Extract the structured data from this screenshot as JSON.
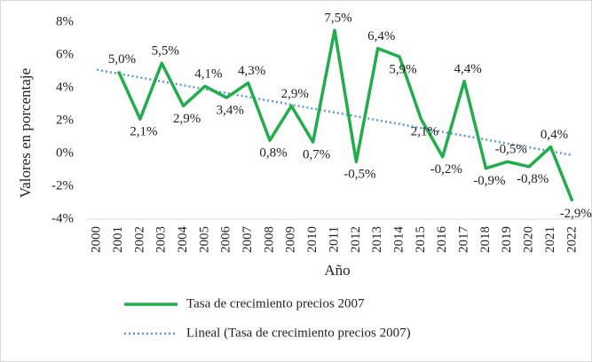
{
  "chart_data": {
    "type": "line",
    "categories": [
      "2000",
      "2001",
      "2002",
      "2003",
      "2004",
      "2005",
      "2006",
      "2007",
      "2008",
      "2009",
      "2010",
      "2011",
      "2012",
      "2013",
      "2014",
      "2015",
      "2016",
      "2017",
      "2018",
      "2019",
      "2020",
      "2021",
      "2022"
    ],
    "series": [
      {
        "name": "Tasa de crecimiento precios  2007",
        "color": "#21ad4b",
        "values": [
          null,
          5.0,
          2.1,
          5.5,
          2.9,
          4.1,
          3.4,
          4.3,
          0.8,
          2.9,
          0.7,
          7.5,
          -0.5,
          6.4,
          5.9,
          2.1,
          -0.2,
          4.4,
          -0.9,
          -0.5,
          -0.8,
          0.4,
          -2.9
        ],
        "value_labels": [
          null,
          "5,0%",
          "2,1%",
          "5,5%",
          "2,9%",
          "4,1%",
          "3,4%",
          "4,3%",
          "0,8%",
          "2,9%",
          "0,7%",
          "7,5%",
          "-0,5%",
          "6,4%",
          "5,9%",
          "2,1%",
          "-0,2%",
          "4,4%",
          "-0,9%",
          "-0,5%",
          "-0,8%",
          "0,4%",
          "-2,9%"
        ]
      }
    ],
    "trendline": {
      "name": "Lineal (Tasa de crecimiento precios  2007)",
      "color": "#5b9bd5",
      "values": [
        5.1,
        -0.1
      ]
    },
    "xlabel": "Año",
    "ylabel": "Valores en porcentaje",
    "ylim": [
      -4,
      8
    ],
    "yticks": [
      {
        "value": -4,
        "label": "-4%"
      },
      {
        "value": -2,
        "label": "-2%"
      },
      {
        "value": 0,
        "label": "0%"
      },
      {
        "value": 2,
        "label": "2%"
      },
      {
        "value": 4,
        "label": "4%"
      },
      {
        "value": 6,
        "label": "6%"
      },
      {
        "value": 8,
        "label": "8%"
      }
    ],
    "grid": false,
    "legend": "bottom"
  }
}
